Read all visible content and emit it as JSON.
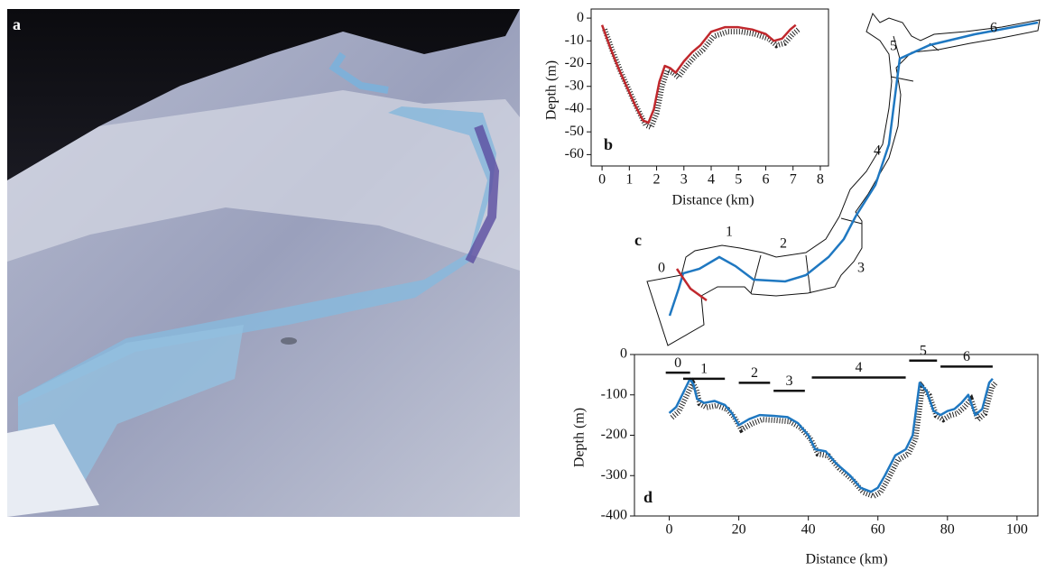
{
  "image_panel": {
    "label": "a"
  },
  "map_panel": {
    "label": "c",
    "segment_labels": [
      "0",
      "1",
      "2",
      "3",
      "4",
      "5",
      "6"
    ]
  },
  "chart_data": [
    {
      "type": "line",
      "panel_label": "b",
      "x_label": "Distance (km)",
      "y_label": "Depth (m)",
      "color": "#c0282d",
      "x": [
        0,
        0.3,
        0.6,
        0.9,
        1.2,
        1.5,
        1.7,
        1.9,
        2.1,
        2.3,
        2.5,
        2.7,
        3.0,
        3.3,
        3.6,
        4.0,
        4.5,
        5.0,
        5.5,
        6.0,
        6.3,
        6.6,
        6.9,
        7.1
      ],
      "values": [
        -3,
        -13,
        -22,
        -30,
        -38,
        -45,
        -46,
        -40,
        -28,
        -21,
        -22,
        -24,
        -19,
        -15,
        -12,
        -6,
        -4,
        -4,
        -5,
        -7,
        -10,
        -9,
        -5,
        -3
      ],
      "xlim": [
        -0.4,
        8.3
      ],
      "ylim": [
        -65,
        4
      ],
      "xticks": [
        0,
        1,
        2,
        3,
        4,
        5,
        6,
        7,
        8
      ],
      "yticks": [
        0,
        -10,
        -20,
        -30,
        -40,
        -50,
        -60
      ]
    },
    {
      "type": "line",
      "panel_label": "d",
      "x_label": "Distance (km)",
      "y_label": "Depth (m)",
      "color": "#1f78c1",
      "x": [
        0,
        2,
        4,
        6,
        7,
        8,
        10,
        13,
        16,
        18,
        20,
        23,
        26,
        30,
        34,
        37,
        40,
        42,
        45,
        48,
        52,
        55,
        58,
        60,
        62,
        65,
        68,
        70,
        72,
        74,
        76,
        78,
        80,
        82,
        84,
        86,
        88,
        90,
        92,
        93
      ],
      "values": [
        -145,
        -130,
        -95,
        -60,
        -75,
        -110,
        -120,
        -115,
        -125,
        -145,
        -175,
        -160,
        -150,
        -152,
        -155,
        -170,
        -200,
        -235,
        -240,
        -270,
        -300,
        -330,
        -340,
        -330,
        -300,
        -250,
        -235,
        -200,
        -70,
        -90,
        -140,
        -150,
        -140,
        -135,
        -120,
        -100,
        -150,
        -135,
        -70,
        -60
      ],
      "xlim": [
        -10,
        106
      ],
      "ylim": [
        -400,
        0
      ],
      "xticks": [
        0,
        20,
        40,
        60,
        80,
        100
      ],
      "yticks": [
        0,
        -100,
        -200,
        -300,
        -400
      ],
      "segments": [
        {
          "label": "0",
          "start": -1,
          "end": 6,
          "depth": -45
        },
        {
          "label": "1",
          "start": 4,
          "end": 16,
          "depth": -60
        },
        {
          "label": "2",
          "start": 20,
          "end": 29,
          "depth": -70
        },
        {
          "label": "3",
          "start": 30,
          "end": 39,
          "depth": -90
        },
        {
          "label": "4",
          "start": 41,
          "end": 68,
          "depth": -57
        },
        {
          "label": "5",
          "start": 69,
          "end": 77,
          "depth": -15
        },
        {
          "label": "6",
          "start": 78,
          "end": 93,
          "depth": -30
        }
      ]
    }
  ]
}
